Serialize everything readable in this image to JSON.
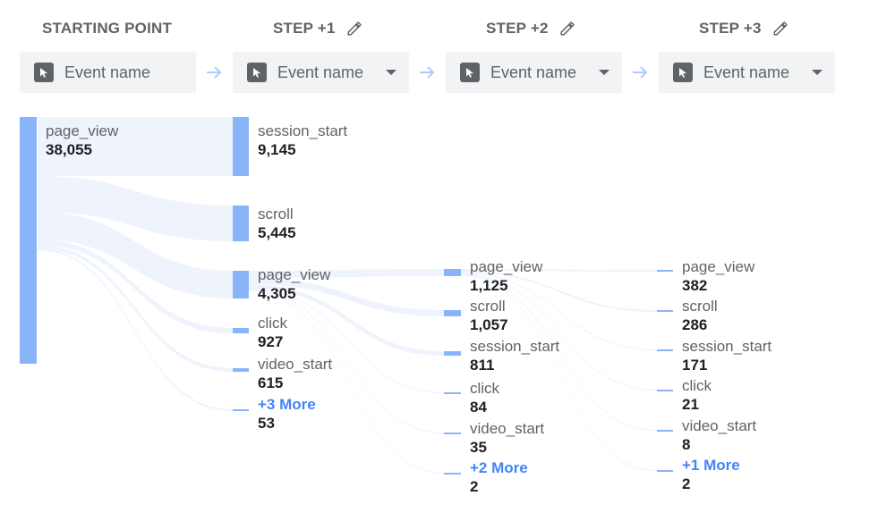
{
  "header": {
    "starting_point": "STARTING POINT",
    "step1": "STEP +1",
    "step2": "STEP +2",
    "step3": "STEP +3"
  },
  "pickers": {
    "start_label": "Event name",
    "step1_label": "Event name",
    "step2_label": "Event name",
    "step3_label": "Event name"
  },
  "icons": {
    "pencil": "pencil-icon",
    "cursor": "cursor-icon",
    "arrow": "arrow-right-icon",
    "caret": "dropdown-caret-icon"
  },
  "colors": {
    "node": "#8ab4f8",
    "flow": "#e8eefc",
    "more_link": "#4285f4",
    "header_text": "#5f6368"
  },
  "start": {
    "name": "page_view",
    "value": "38,055"
  },
  "step1": [
    {
      "name": "session_start",
      "value": "9,145"
    },
    {
      "name": "scroll",
      "value": "5,445"
    },
    {
      "name": "page_view",
      "value": "4,305"
    },
    {
      "name": "click",
      "value": "927"
    },
    {
      "name": "video_start",
      "value": "615"
    },
    {
      "name": "+3 More",
      "value": "53",
      "more": true
    }
  ],
  "step2": [
    {
      "name": "page_view",
      "value": "1,125"
    },
    {
      "name": "scroll",
      "value": "1,057"
    },
    {
      "name": "session_start",
      "value": "811"
    },
    {
      "name": "click",
      "value": "84"
    },
    {
      "name": "video_start",
      "value": "35"
    },
    {
      "name": "+2 More",
      "value": "2",
      "more": true
    }
  ],
  "step3": [
    {
      "name": "page_view",
      "value": "382"
    },
    {
      "name": "scroll",
      "value": "286"
    },
    {
      "name": "session_start",
      "value": "171"
    },
    {
      "name": "click",
      "value": "21"
    },
    {
      "name": "video_start",
      "value": "8"
    },
    {
      "name": "+1 More",
      "value": "2",
      "more": true
    }
  ]
}
